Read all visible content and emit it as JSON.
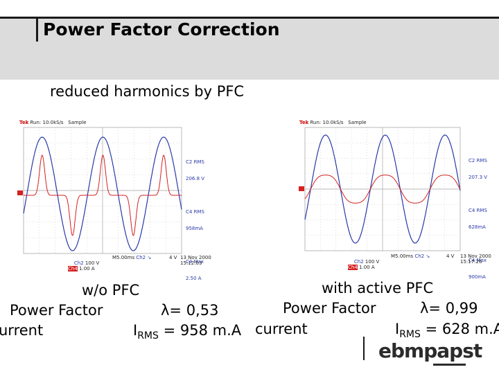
{
  "slide": {
    "title": "Power Factor Correction",
    "subtitle": "reduced harmonics by PFC"
  },
  "colors": {
    "ch2": "#2838a8",
    "ch4": "#d42020",
    "grid": "#b8b8b8"
  },
  "scope_left": {
    "header": {
      "brand": "Tek",
      "run": "Run: 10.0kS/s",
      "mode": "Sample"
    },
    "readouts": [
      "C2 RMS",
      "206.8 V",
      "C4 RMS",
      "958mA",
      "C4 Max",
      "2.50 A"
    ],
    "ch2_label": "Ch2",
    "ch4_label": "Ch4",
    "ch2_scale": "100 V",
    "ch4_scale": "1.00 A",
    "timebase": "M5.00ms",
    "trigger": "Ch2 ↘",
    "trigger_level": "4 V",
    "date": "13 Nov 2000",
    "time": "15:12:03"
  },
  "scope_right": {
    "header": {
      "brand": "Tek",
      "run": "Run: 10.0kS/s",
      "mode": "Sample"
    },
    "readouts": [
      "C2 RMS",
      "207.3 V",
      "C4 RMS",
      "628mA",
      "C4 Max",
      "900mA"
    ],
    "ch2_label": "Ch2",
    "ch4_label": "Ch4",
    "ch2_scale": "100 V",
    "ch4_scale": "1.00 A",
    "timebase": "M5.00ms",
    "trigger": "Ch2 ↘",
    "trigger_level": "4 V",
    "date": "13 Nov 2000",
    "time": "15:17:26"
  },
  "left_caption": {
    "mode": "w/o PFC",
    "pf_label": "Power Factor",
    "pf_value": "λ= 0,53",
    "current_label": "urrent",
    "irms_prefix": "I",
    "irms_sub": "RMS",
    "irms_value": " = 958 m.A"
  },
  "right_caption": {
    "mode": "with active PFC",
    "pf_label": "Power Factor",
    "pf_value": "λ= 0,99",
    "current_label": "current",
    "irms_prefix": "I",
    "irms_sub": "RMS",
    "irms_value": " = 628 m.A"
  },
  "logo": {
    "text": "ebmpapst"
  }
}
